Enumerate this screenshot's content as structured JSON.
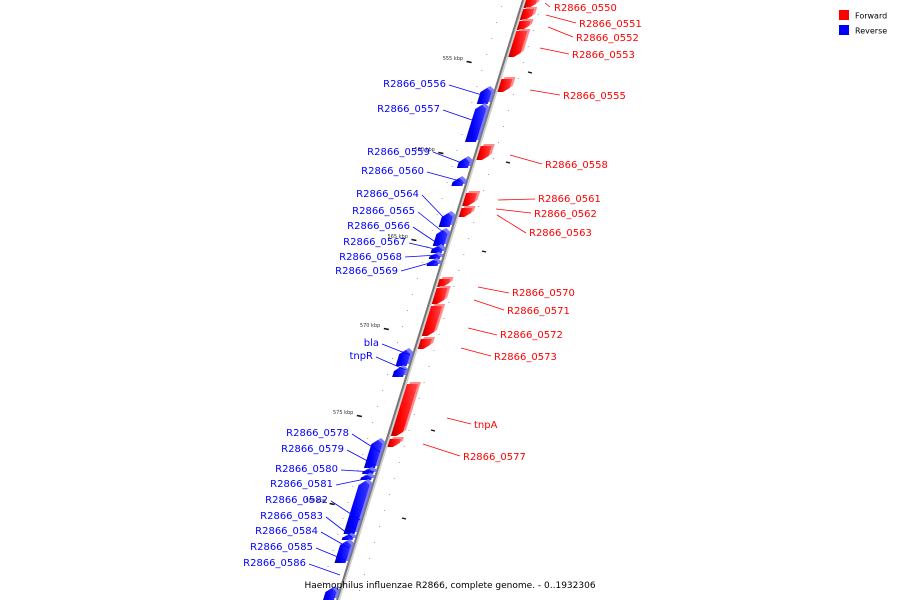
{
  "caption": "Haemophilus influenzae R2866, complete genome. - 0..1932306",
  "legend": {
    "forward_label": "Forward",
    "reverse_label": "Reverse",
    "forward_color": "#ff0000",
    "reverse_color": "#0000ff"
  },
  "ticks": [
    {
      "pos_kbp": 555,
      "label": "555 kbp"
    },
    {
      "pos_kbp": 560,
      "label": "560 kbp"
    },
    {
      "pos_kbp": 565,
      "label": "565 kbp"
    },
    {
      "pos_kbp": 570,
      "label": "570 kbp"
    },
    {
      "pos_kbp": 575,
      "label": "575 kbp"
    },
    {
      "pos_kbp": 580,
      "label": "580 kbp"
    }
  ],
  "forward_genes": [
    {
      "label": "R2866_0550"
    },
    {
      "label": "R2866_0551"
    },
    {
      "label": "R2866_0552"
    },
    {
      "label": "R2866_0553"
    },
    {
      "label": "R2866_0555"
    },
    {
      "label": "R2866_0558"
    },
    {
      "label": "R2866_0561"
    },
    {
      "label": "R2866_0562"
    },
    {
      "label": "R2866_0563"
    },
    {
      "label": "R2866_0570"
    },
    {
      "label": "R2866_0571"
    },
    {
      "label": "R2866_0572"
    },
    {
      "label": "R2866_0573"
    },
    {
      "label": "tnpA"
    },
    {
      "label": "R2866_0577"
    }
  ],
  "reverse_genes": [
    {
      "label": "R2866_0556"
    },
    {
      "label": "R2866_0557"
    },
    {
      "label": "R2866_0559"
    },
    {
      "label": "R2866_0560"
    },
    {
      "label": "R2866_0564"
    },
    {
      "label": "R2866_0565"
    },
    {
      "label": "R2866_0566"
    },
    {
      "label": "R2866_0567"
    },
    {
      "label": "R2866_0568"
    },
    {
      "label": "R2866_0569"
    },
    {
      "label": "bla"
    },
    {
      "label": "tnpR"
    },
    {
      "label": "R2866_0578"
    },
    {
      "label": "R2866_0579"
    },
    {
      "label": "R2866_0580"
    },
    {
      "label": "R2866_0581"
    },
    {
      "label": "R2866_0582"
    },
    {
      "label": "R2866_0583"
    },
    {
      "label": "R2866_0584"
    },
    {
      "label": "R2866_0585"
    },
    {
      "label": "R2866_0586"
    }
  ]
}
